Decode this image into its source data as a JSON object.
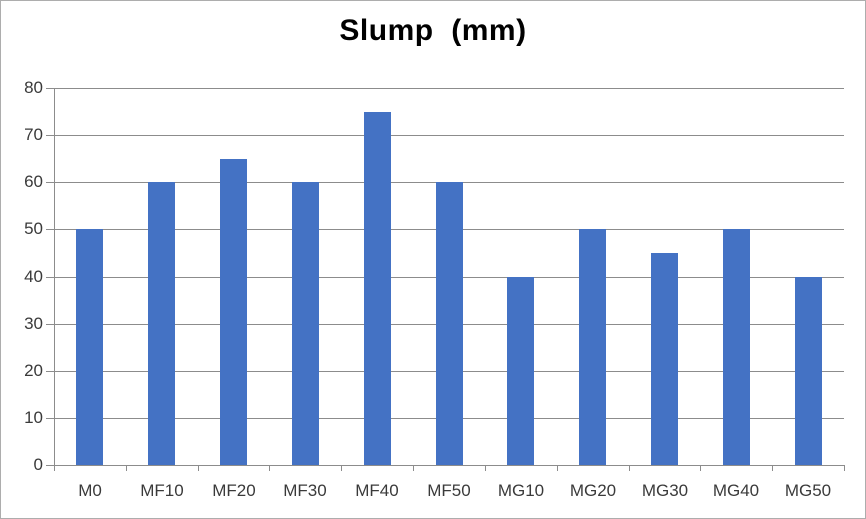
{
  "chart_data": {
    "type": "bar",
    "title": "Slump  (mm)",
    "categories": [
      "M0",
      "MF10",
      "MF20",
      "MF30",
      "MF40",
      "MF50",
      "MG10",
      "MG20",
      "MG30",
      "MG40",
      "MG50"
    ],
    "values": [
      50,
      60,
      65,
      60,
      75,
      60,
      40,
      50,
      45,
      50,
      40
    ],
    "xlabel": "",
    "ylabel": "",
    "ylim": [
      0,
      80
    ],
    "yticks": [
      0,
      10,
      20,
      30,
      40,
      50,
      60,
      70,
      80
    ],
    "grid": true,
    "legend": "none",
    "bar_color": "#4472C4",
    "gridline_color": "#8c8c8c",
    "axis_color": "#8c8c8c",
    "tick_label_color": "#3a3a3a",
    "title_color": "#000000",
    "background_color": "#ffffff",
    "border_color": "#adadad"
  }
}
